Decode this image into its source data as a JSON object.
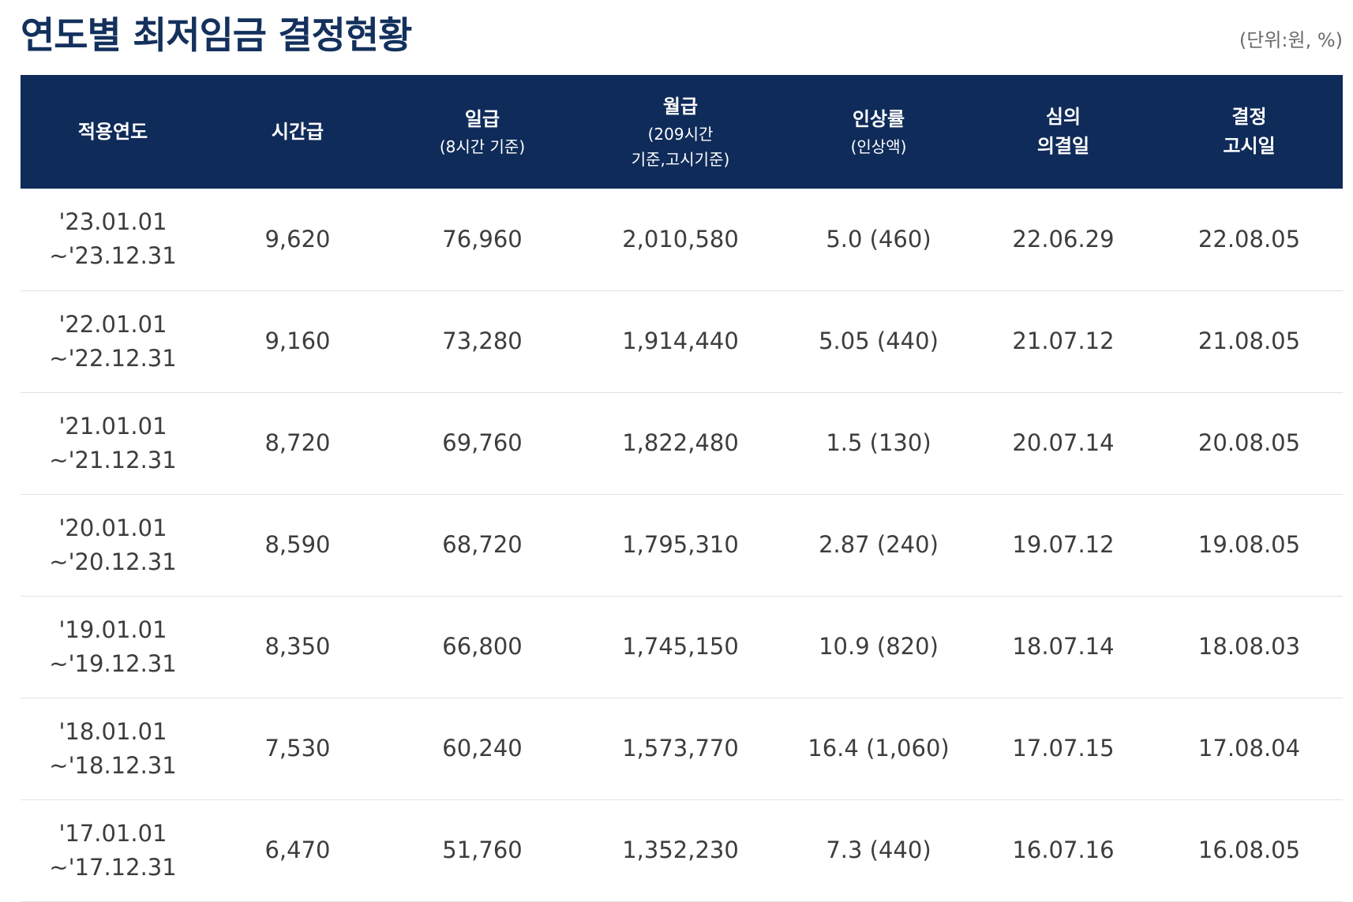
{
  "title": "연도별 최저임금 결정현황",
  "unit_note": "(단위:원, %)",
  "colors": {
    "header_bg": "#0f2b59",
    "title_color": "#13315c"
  },
  "table": {
    "headers": [
      {
        "main": "적용연도",
        "sub": ""
      },
      {
        "main": "시간급",
        "sub": ""
      },
      {
        "main": "일급",
        "sub": "(8시간 기준)"
      },
      {
        "main": "월급",
        "sub": "(209시간",
        "sub2": "기준,고시기준)"
      },
      {
        "main": "인상률",
        "sub": "(인상액)"
      },
      {
        "main": "심의",
        "main2": "의결일"
      },
      {
        "main": "결정",
        "main2": "고시일"
      }
    ],
    "rows": [
      {
        "period_start": "'23.01.01",
        "period_end": "~'23.12.31",
        "hourly": "9,620",
        "daily": "76,960",
        "monthly": "2,010,580",
        "increase": "5.0 (460)",
        "deliberation_date": "22.06.29",
        "notice_date": "22.08.05"
      },
      {
        "period_start": "'22.01.01",
        "period_end": "~'22.12.31",
        "hourly": "9,160",
        "daily": "73,280",
        "monthly": "1,914,440",
        "increase": "5.05 (440)",
        "deliberation_date": "21.07.12",
        "notice_date": "21.08.05"
      },
      {
        "period_start": "'21.01.01",
        "period_end": "~'21.12.31",
        "hourly": "8,720",
        "daily": "69,760",
        "monthly": "1,822,480",
        "increase": "1.5 (130)",
        "deliberation_date": "20.07.14",
        "notice_date": "20.08.05"
      },
      {
        "period_start": "'20.01.01",
        "period_end": "~'20.12.31",
        "hourly": "8,590",
        "daily": "68,720",
        "monthly": "1,795,310",
        "increase": "2.87 (240)",
        "deliberation_date": "19.07.12",
        "notice_date": "19.08.05"
      },
      {
        "period_start": "'19.01.01",
        "period_end": "~'19.12.31",
        "hourly": "8,350",
        "daily": "66,800",
        "monthly": "1,745,150",
        "increase": "10.9 (820)",
        "deliberation_date": "18.07.14",
        "notice_date": "18.08.03"
      },
      {
        "period_start": "'18.01.01",
        "period_end": "~'18.12.31",
        "hourly": "7,530",
        "daily": "60,240",
        "monthly": "1,573,770",
        "increase": "16.4 (1,060)",
        "deliberation_date": "17.07.15",
        "notice_date": "17.08.04"
      },
      {
        "period_start": "'17.01.01",
        "period_end": "~'17.12.31",
        "hourly": "6,470",
        "daily": "51,760",
        "monthly": "1,352,230",
        "increase": "7.3 (440)",
        "deliberation_date": "16.07.16",
        "notice_date": "16.08.05"
      }
    ]
  }
}
